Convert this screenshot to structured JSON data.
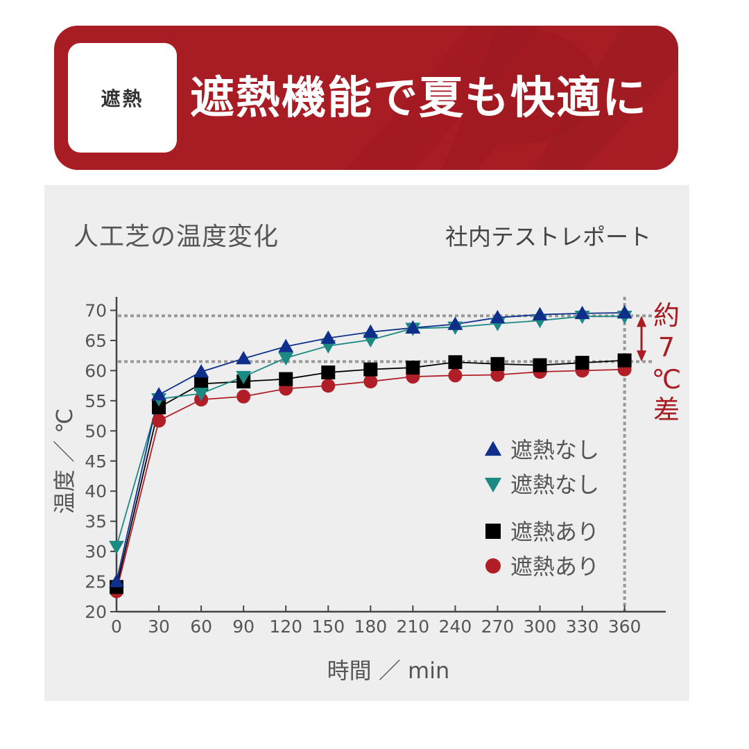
{
  "header": {
    "badge": "遮熱",
    "headline": "遮熱機能で夏も快適に",
    "color": "#A81C24"
  },
  "panel": {
    "title": "人工芝の温度変化",
    "source": "社内テストレポート"
  },
  "chart_data": {
    "type": "line",
    "title": "人工芝の温度変化",
    "subtitle": "社内テストレポート",
    "xlabel": "時間 ／ min",
    "ylabel": "温度 ／ ℃",
    "x": [
      0,
      30,
      60,
      90,
      120,
      150,
      180,
      210,
      240,
      270,
      300,
      330,
      360
    ],
    "xlim": [
      0,
      390
    ],
    "ylim": [
      20,
      72
    ],
    "xticks": [
      0,
      30,
      60,
      90,
      120,
      150,
      180,
      210,
      240,
      270,
      300,
      330,
      360
    ],
    "yticks": [
      20,
      25,
      30,
      35,
      40,
      45,
      50,
      55,
      60,
      65,
      70
    ],
    "grid": false,
    "legend_position": "lower-right",
    "series": [
      {
        "name": "遮熱なし",
        "marker": "triangle-up",
        "color": "#0E2F8A",
        "values": [
          25.0,
          56.0,
          59.8,
          62.0,
          64.0,
          65.4,
          66.4,
          67.1,
          67.7,
          68.8,
          69.3,
          69.5,
          69.6
        ]
      },
      {
        "name": "遮熱なし",
        "marker": "triangle-down",
        "color": "#1A8A82",
        "values": [
          30.8,
          55.3,
          56.2,
          59.0,
          62.1,
          64.1,
          65.1,
          67.0,
          67.2,
          67.8,
          68.3,
          69.0,
          69.0
        ]
      },
      {
        "name": "遮熱あり",
        "marker": "square",
        "color": "#000000",
        "values": [
          24.1,
          53.9,
          57.8,
          58.2,
          58.6,
          59.7,
          60.2,
          60.5,
          61.4,
          61.1,
          60.9,
          61.3,
          61.7
        ]
      },
      {
        "name": "遮熱あり",
        "marker": "circle",
        "color": "#B01E28",
        "values": [
          23.4,
          51.7,
          55.2,
          55.7,
          57.0,
          57.5,
          58.2,
          59.0,
          59.2,
          59.3,
          59.8,
          60.0,
          60.2
        ]
      }
    ],
    "reference_lines": {
      "horizontal": [
        69.1,
        61.5
      ],
      "vertical": [
        360
      ],
      "style": "dotted",
      "color": "#999999"
    },
    "annotations": [
      {
        "text": "約 7 ℃ 差",
        "type": "double-arrow",
        "from": 69.1,
        "to": 61.5,
        "color": "#A81C24"
      }
    ]
  },
  "annotation_chars": [
    "約",
    "7",
    "℃",
    "差"
  ],
  "legend": [
    {
      "label": "遮熱なし",
      "marker": "triangle-up",
      "color": "#0E2F8A"
    },
    {
      "label": "遮熱なし",
      "marker": "triangle-down",
      "color": "#1A8A82"
    },
    {
      "label": "遮熱あり",
      "marker": "square",
      "color": "#000000"
    },
    {
      "label": "遮熱あり",
      "marker": "circle",
      "color": "#B01E28"
    }
  ]
}
